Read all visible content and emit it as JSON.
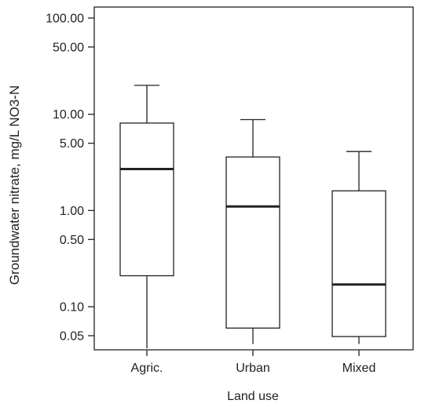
{
  "chart_data": {
    "type": "boxplot",
    "title": "",
    "xlabel": "Land use",
    "ylabel": "Groundwater nitrate, mg/L NO3-N",
    "yscale": "log",
    "ylim": [
      0.037,
      140
    ],
    "yticks": [
      {
        "value": 100,
        "label": "100.00"
      },
      {
        "value": 50,
        "label": "50.00"
      },
      {
        "value": 10,
        "label": "10.00"
      },
      {
        "value": 5,
        "label": "5.00"
      },
      {
        "value": 1,
        "label": "1.00"
      },
      {
        "value": 0.5,
        "label": "0.50"
      },
      {
        "value": 0.1,
        "label": "0.10"
      },
      {
        "value": 0.05,
        "label": "0.05"
      }
    ],
    "categories": [
      "Agric.",
      "Urban",
      "Mixed"
    ],
    "boxes": [
      {
        "category": "Agric.",
        "whisker_low": 0.037,
        "q1": 0.21,
        "median": 2.7,
        "q3": 8.1,
        "whisker_high": 20
      },
      {
        "category": "Urban",
        "whisker_low": 0.041,
        "q1": 0.06,
        "median": 1.1,
        "q3": 3.6,
        "whisker_high": 8.8
      },
      {
        "category": "Mixed",
        "whisker_low": 0.041,
        "q1": 0.049,
        "median": 0.17,
        "q3": 1.6,
        "whisker_high": 4.1
      }
    ],
    "grid": false,
    "legend": "none"
  },
  "colors": {
    "box_fill": "#ffffff",
    "stroke": "#222222",
    "background": "#ffffff"
  }
}
